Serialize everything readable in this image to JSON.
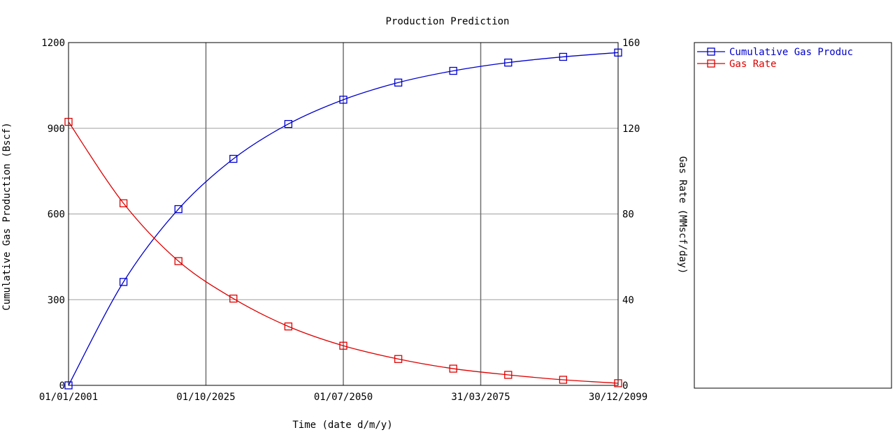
{
  "chart_data": {
    "type": "line",
    "title": "Production Prediction",
    "xlabel": "Time (date d/m/y)",
    "ylabel_left": "Cumulative Gas Production (Bscf)",
    "ylabel_right": "Gas Rate (MMscf/day)",
    "x_tick_labels": [
      "01/01/2001",
      "01/10/2025",
      "01/07/2050",
      "31/03/2075",
      "30/12/2099"
    ],
    "y_left_ticks": [
      "0",
      "300",
      "600",
      "900",
      "1200"
    ],
    "y_right_ticks": [
      "0",
      "40",
      "80",
      "120",
      "160"
    ],
    "ylim_left": [
      0,
      1200
    ],
    "ylim_right": [
      0,
      160
    ],
    "xlim_years": [
      2001.0,
      2100.0
    ],
    "grid": true,
    "legend_position": "right",
    "x_years": [
      2001.0,
      2010.9,
      2020.8,
      2030.7,
      2040.6,
      2050.5,
      2060.4,
      2070.3,
      2080.2,
      2090.1,
      2100.0
    ],
    "series": [
      {
        "name": "Cumulative Gas Production (Bscf)",
        "legend_label": "Cumulative Gas Produc",
        "axis": "left",
        "color": "#0000cc",
        "marker": "square",
        "values": [
          0,
          362,
          617,
          793,
          915,
          1000,
          1060,
          1101,
          1130,
          1150,
          1165
        ]
      },
      {
        "name": "Gas Rate (MMscf/day)",
        "legend_label": "Gas Rate",
        "axis": "right",
        "color": "#dd0000",
        "marker": "square",
        "values": [
          123,
          85,
          58,
          40.5,
          27.5,
          18.5,
          12.3,
          7.8,
          4.9,
          2.6,
          1.0
        ]
      }
    ]
  }
}
